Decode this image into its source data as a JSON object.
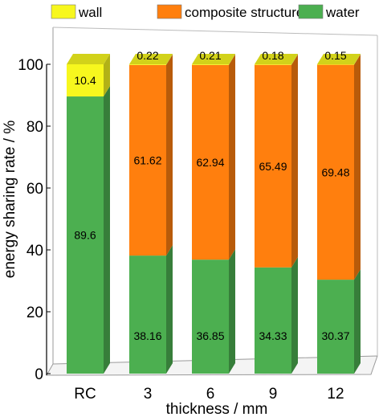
{
  "chart_data": {
    "type": "bar",
    "stacked": true,
    "style": "3d",
    "categories": [
      "RC",
      "3",
      "6",
      "9",
      "12"
    ],
    "series": [
      {
        "name": "water",
        "color": "#4caf50",
        "values": [
          89.6,
          38.16,
          36.85,
          34.33,
          30.37
        ],
        "labels": [
          "89.6",
          "38.16",
          "36.85",
          "34.33",
          "30.37"
        ]
      },
      {
        "name": "composite structure",
        "color": "#ff7f0e",
        "values": [
          0,
          61.62,
          62.94,
          65.49,
          69.48
        ],
        "labels": [
          "",
          "61.62",
          "62.94",
          "65.49",
          "69.48"
        ]
      },
      {
        "name": "wall",
        "color": "#f7f71e",
        "values": [
          10.4,
          0.22,
          0.21,
          0.18,
          0.15
        ],
        "labels": [
          "10.4",
          "0.22",
          "0.21",
          "0.18",
          "0.15"
        ]
      }
    ],
    "xlabel": "thickness / mm",
    "ylabel": "energy sharing rate / %",
    "ylim": [
      0,
      100
    ],
    "yticks": [
      "0",
      "20",
      "40",
      "60",
      "80",
      "100"
    ],
    "legend": {
      "position": "top",
      "entries": [
        "wall",
        "composite structure",
        "water"
      ]
    },
    "grid": false
  }
}
